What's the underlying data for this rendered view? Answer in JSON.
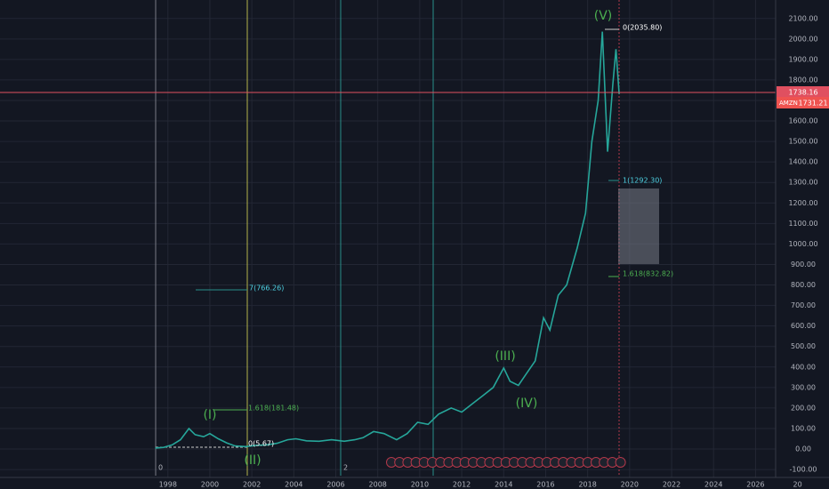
{
  "chart_data": {
    "type": "line",
    "symbol": "AMZN",
    "crosshair_price": 1738.16,
    "last_price": 1731.21,
    "series": [
      {
        "name": "AMZN",
        "color": "#26a69a",
        "x": [
          1997.4,
          1997.8,
          1998.2,
          1998.6,
          1999.0,
          1999.3,
          1999.7,
          2000.0,
          2000.4,
          2000.8,
          2001.2,
          2001.7,
          2002.2,
          2002.7,
          2003.2,
          2003.7,
          2004.1,
          2004.6,
          2005.2,
          2005.8,
          2006.4,
          2006.9,
          2007.3,
          2007.8,
          2008.3,
          2008.9,
          2009.4,
          2009.9,
          2010.4,
          2010.9,
          2011.5,
          2012.0,
          2012.5,
          2013.0,
          2013.5,
          2014.0,
          2014.3,
          2014.7,
          2015.1,
          2015.5,
          2015.9,
          2016.2,
          2016.6,
          2017.0,
          2017.5,
          2017.9,
          2018.2,
          2018.5,
          2018.7,
          2018.95,
          2019.2,
          2019.35,
          2019.5
        ],
        "values": [
          5,
          8,
          20,
          45,
          100,
          70,
          60,
          75,
          50,
          30,
          15,
          12,
          18,
          20,
          28,
          45,
          50,
          40,
          38,
          45,
          38,
          45,
          55,
          85,
          75,
          45,
          75,
          130,
          120,
          170,
          200,
          180,
          220,
          260,
          300,
          395,
          330,
          310,
          370,
          430,
          640,
          580,
          750,
          800,
          980,
          1150,
          1500,
          1700,
          2035.8,
          1450,
          1780,
          1950,
          1731.21
        ]
      }
    ],
    "annotations": [
      "(V)",
      "0(2035.80)",
      "1(1292.30)",
      "1.618(832.82)",
      "7(766.26)",
      "1.618(181.48)",
      "0(5.67)",
      "(I)",
      "(II)",
      "(III)",
      "(IV)",
      "0",
      "2"
    ],
    "xlim": [
      1990,
      2029.5
    ],
    "ylim": [
      -130,
      2190
    ],
    "xticks": [
      1998,
      2000,
      2002,
      2004,
      2006,
      2008,
      2010,
      2012,
      2014,
      2016,
      2018,
      2020,
      2022,
      2024,
      2026,
      {
        "value": 2028,
        "label": "20"
      }
    ],
    "yticks": [
      {
        "value": -100,
        "label": "-100.00"
      },
      {
        "value": 0,
        "label": "0.00"
      },
      {
        "value": 100,
        "label": "100.00"
      },
      {
        "value": 200,
        "label": "200.00"
      },
      {
        "value": 300,
        "label": "300.00"
      },
      {
        "value": 400,
        "label": "400.00"
      },
      {
        "value": 500,
        "label": "500.00"
      },
      {
        "value": 600,
        "label": "600.00"
      },
      {
        "value": 700,
        "label": "700.00"
      },
      {
        "value": 800,
        "label": "800.00"
      },
      {
        "value": 900,
        "label": "900.00"
      },
      {
        "value": 1000,
        "label": "1000.00"
      },
      {
        "value": 1100,
        "label": "1100.00"
      },
      {
        "value": 1200,
        "label": "1200.00"
      },
      {
        "value": 1300,
        "label": "1300.00"
      },
      {
        "value": 1400,
        "label": "1400.00"
      },
      {
        "value": 1500,
        "label": "1500.00"
      },
      {
        "value": 1600,
        "label": "1600.00"
      },
      {
        "value": 1700,
        "label": "1700.00"
      },
      {
        "value": 1800,
        "label": "1800.00"
      },
      {
        "value": 1900,
        "label": "1900.00"
      },
      {
        "value": 2000,
        "label": "2000.00"
      },
      {
        "value": 2100,
        "label": "2100.00"
      }
    ],
    "grid": true
  }
}
